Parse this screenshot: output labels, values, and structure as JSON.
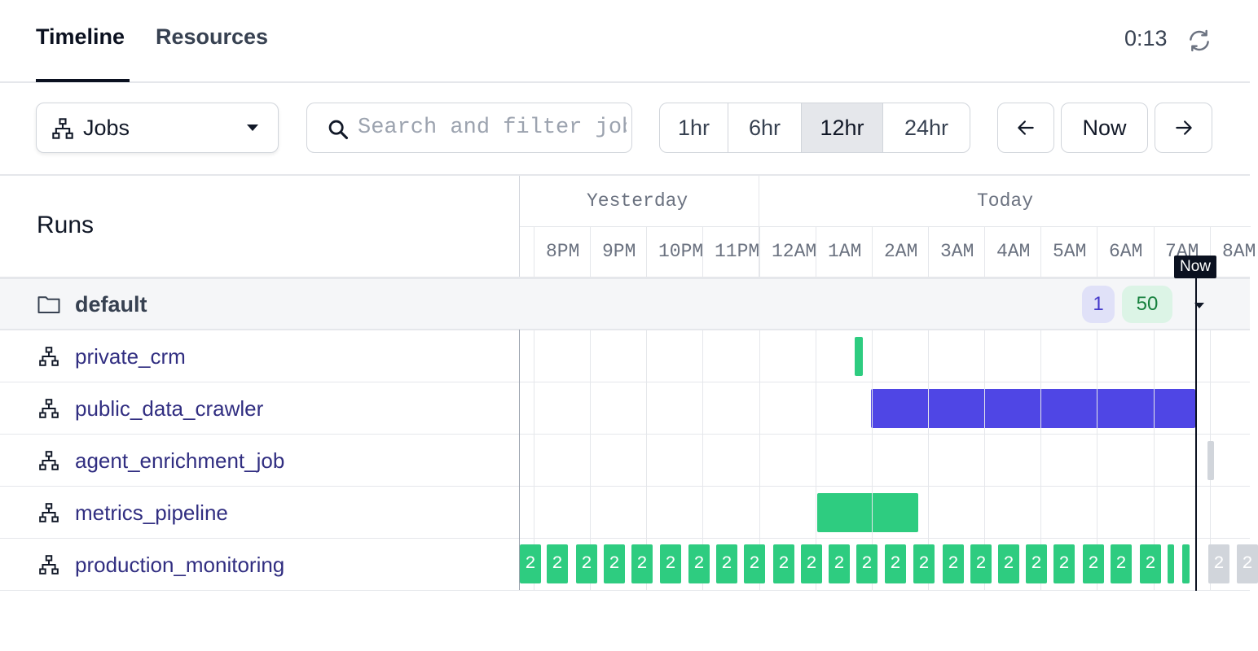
{
  "tabs": [
    {
      "label": "Timeline",
      "active": true
    },
    {
      "label": "Resources",
      "active": false
    }
  ],
  "timer": "0:13",
  "toolbar": {
    "select_label": "Jobs",
    "search_placeholder": "Search and filter jobs",
    "ranges": [
      "1hr",
      "6hr",
      "12hr",
      "24hr"
    ],
    "active_range": "12hr",
    "now_label": "Now"
  },
  "timeline": {
    "runs_title": "Runs",
    "days": [
      "Yesterday",
      "Today"
    ],
    "hours": [
      "8PM",
      "9PM",
      "10PM",
      "11PM",
      "12AM",
      "1AM",
      "2AM",
      "3AM",
      "4AM",
      "5AM",
      "6AM",
      "7AM",
      "8AM"
    ],
    "now_tag": "Now"
  },
  "group": {
    "name": "default",
    "badge_running": "1",
    "badge_success": "50"
  },
  "jobs": [
    {
      "name": "private_crm"
    },
    {
      "name": "public_data_crawler"
    },
    {
      "name": "agent_enrichment_job"
    },
    {
      "name": "metrics_pipeline"
    },
    {
      "name": "production_monitoring",
      "run_count_label": "2"
    }
  ],
  "colors": {
    "success": "#2ecc80",
    "running": "#4f46e5",
    "scheduled": "#d1d5db",
    "badge_running_bg": "#e0e1f8",
    "badge_success_bg": "#dcf4e6"
  }
}
